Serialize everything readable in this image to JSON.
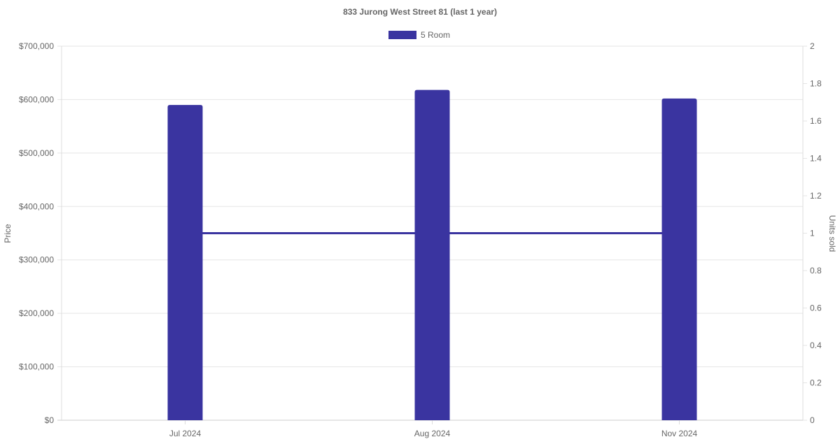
{
  "chart_data": {
    "type": "bar",
    "title": "833 Jurong West Street 81 (last 1 year)",
    "categories": [
      "Jul 2024",
      "Aug 2024",
      "Nov 2024"
    ],
    "series": [
      {
        "name": "5 Room",
        "type": "bar",
        "axis": "left",
        "values": [
          590000,
          618000,
          602000
        ],
        "color": "#3A34A0"
      },
      {
        "type": "line",
        "axis": "right",
        "values": [
          1,
          1,
          1
        ],
        "color": "#3A34A0"
      }
    ],
    "ylabel": "Price",
    "y2label": "Units sold",
    "ylim": [
      0,
      700000
    ],
    "y2lim": [
      0,
      2
    ],
    "yticks": [
      "$0",
      "$100,000",
      "$200,000",
      "$300,000",
      "$400,000",
      "$500,000",
      "$600,000",
      "$700,000"
    ],
    "y2ticks": [
      "0",
      "0.2",
      "0.4",
      "0.6",
      "0.8",
      "1",
      "1.2",
      "1.4",
      "1.6",
      "1.8",
      "2"
    ],
    "grid": true,
    "legend": "top"
  }
}
